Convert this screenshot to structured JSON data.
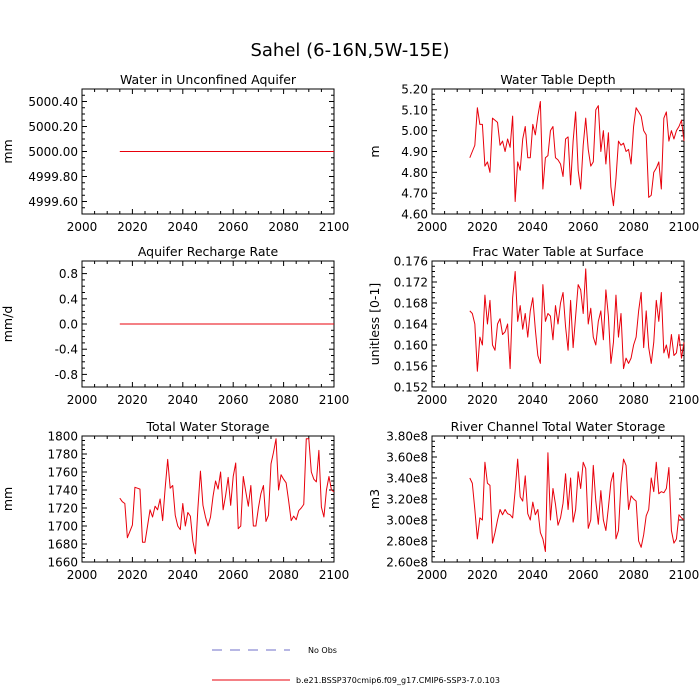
{
  "title": "Sahel (6-16N,5W-15E)",
  "legend": [
    {
      "label": "No Obs",
      "color": "#6f6fc8",
      "dash": true
    },
    {
      "label": "b.e21.BSSP370cmip6.f09_g17.CMIP6-SSP3-7.0.103",
      "color": "#e8000b",
      "dash": false
    }
  ],
  "chart_data": [
    {
      "type": "line",
      "title": "Water in Unconfined Aquifer",
      "xlabel": "",
      "ylabel": "mm",
      "xlim": [
        2000,
        2100
      ],
      "ylim": [
        4999.5,
        5000.5
      ],
      "xticks": [
        2000,
        2020,
        2040,
        2060,
        2080,
        2100
      ],
      "yticks": [
        4999.6,
        4999.8,
        5000.0,
        5000.2,
        5000.4
      ],
      "ytick_labels": [
        "4999.60",
        "4999.80",
        "5000.00",
        "5000.20",
        "5000.40"
      ],
      "series": [
        {
          "x": [
            2015,
            2100
          ],
          "y": [
            5000.0,
            5000.0
          ]
        }
      ]
    },
    {
      "type": "line",
      "title": "Water Table Depth",
      "xlabel": "",
      "ylabel": "m",
      "xlim": [
        2000,
        2100
      ],
      "ylim": [
        4.6,
        5.2
      ],
      "xticks": [
        2000,
        2020,
        2040,
        2060,
        2080,
        2100
      ],
      "yticks": [
        4.6,
        4.7,
        4.8,
        4.9,
        5.0,
        5.1,
        5.2
      ],
      "ytick_labels": [
        "4.60",
        "4.70",
        "4.80",
        "4.90",
        "5.00",
        "5.10",
        "5.20"
      ],
      "series": [
        {
          "x_start": 2015,
          "y": [
            4.87,
            4.9,
            4.93,
            5.11,
            5.03,
            5.03,
            4.83,
            4.85,
            4.8,
            5.06,
            5.05,
            5.04,
            4.93,
            4.95,
            4.9,
            4.96,
            4.92,
            5.07,
            4.66,
            4.85,
            4.81,
            4.96,
            5.02,
            4.87,
            4.87,
            5.03,
            4.98,
            5.07,
            5.14,
            4.72,
            4.87,
            4.88,
            5.0,
            5.02,
            4.87,
            4.86,
            4.84,
            4.78,
            4.96,
            4.97,
            4.74,
            4.95,
            5.09,
            4.81,
            4.72,
            4.93,
            5.06,
            4.91,
            4.83,
            4.85,
            5.1,
            5.12,
            4.9,
            5.0,
            4.84,
            4.99,
            4.73,
            4.64,
            4.77,
            4.95,
            4.93,
            4.94,
            4.9,
            4.91,
            4.84,
            5.02,
            5.11,
            5.09,
            5.07,
            5.0,
            4.98,
            4.68,
            4.69,
            4.8,
            4.82,
            4.85,
            4.72,
            5.06,
            5.09,
            4.95,
            5.0,
            4.96,
            5.0,
            5.02,
            5.05,
            4.95
          ]
        }
      ]
    },
    {
      "type": "line",
      "title": "Aquifer Recharge Rate",
      "xlabel": "",
      "ylabel": "mm/d",
      "xlim": [
        2000,
        2100
      ],
      "ylim": [
        -1.0,
        1.0
      ],
      "xticks": [
        2000,
        2020,
        2040,
        2060,
        2080,
        2100
      ],
      "yticks": [
        -0.8,
        -0.4,
        0.0,
        0.4,
        0.8
      ],
      "ytick_labels": [
        "-0.8",
        "-0.4",
        "0.0",
        "0.4",
        "0.8"
      ],
      "series": [
        {
          "x": [
            2015,
            2100
          ],
          "y": [
            0.0,
            0.0
          ]
        }
      ]
    },
    {
      "type": "line",
      "title": "Frac Water Table at Surface",
      "xlabel": "",
      "ylabel": "unitless [0-1]",
      "xlim": [
        2000,
        2100
      ],
      "ylim": [
        0.152,
        0.176
      ],
      "xticks": [
        2000,
        2020,
        2040,
        2060,
        2080,
        2100
      ],
      "yticks": [
        0.152,
        0.156,
        0.16,
        0.164,
        0.168,
        0.172,
        0.176
      ],
      "ytick_labels": [
        "0.152",
        "0.156",
        "0.160",
        "0.164",
        "0.168",
        "0.172",
        "0.176"
      ],
      "series": [
        {
          "x_start": 2015,
          "y": [
            0.1665,
            0.166,
            0.164,
            0.155,
            0.1615,
            0.16,
            0.1695,
            0.164,
            0.1685,
            0.16,
            0.159,
            0.164,
            0.165,
            0.162,
            0.1625,
            0.164,
            0.1555,
            0.169,
            0.174,
            0.1645,
            0.1675,
            0.163,
            0.166,
            0.1615,
            0.1665,
            0.169,
            0.163,
            0.158,
            0.1565,
            0.1715,
            0.1645,
            0.166,
            0.1655,
            0.161,
            0.1675,
            0.164,
            0.168,
            0.17,
            0.1635,
            0.159,
            0.1685,
            0.1595,
            0.1655,
            0.1715,
            0.1705,
            0.166,
            0.1745,
            0.164,
            0.167,
            0.1615,
            0.16,
            0.1645,
            0.1665,
            0.161,
            0.1705,
            0.1655,
            0.1565,
            0.1605,
            0.1695,
            0.1615,
            0.166,
            0.1555,
            0.1575,
            0.1565,
            0.1575,
            0.16,
            0.1615,
            0.1665,
            0.17,
            0.1595,
            0.1665,
            0.1595,
            0.1565,
            0.1605,
            0.1685,
            0.1645,
            0.17,
            0.1585,
            0.16,
            0.1575,
            0.162,
            0.158,
            0.1585,
            0.162,
            0.1575,
            0.1605
          ]
        }
      ]
    },
    {
      "type": "line",
      "title": "Total Water Storage",
      "xlabel": "",
      "ylabel": "mm",
      "xlim": [
        2000,
        2100
      ],
      "ylim": [
        1660,
        1800
      ],
      "xticks": [
        2000,
        2020,
        2040,
        2060,
        2080,
        2100
      ],
      "yticks": [
        1660,
        1680,
        1700,
        1720,
        1740,
        1760,
        1780,
        1800
      ],
      "ytick_labels": [
        "1660",
        "1680",
        "1700",
        "1720",
        "1740",
        "1760",
        "1780",
        "1800"
      ],
      "series": [
        {
          "x_start": 2015,
          "y": [
            1731,
            1727,
            1725,
            1687,
            1694,
            1701,
            1743,
            1742,
            1741,
            1682,
            1682,
            1700,
            1718,
            1710,
            1722,
            1718,
            1730,
            1706,
            1742,
            1774,
            1742,
            1745,
            1712,
            1700,
            1696,
            1725,
            1700,
            1715,
            1711,
            1683,
            1669,
            1720,
            1761,
            1723,
            1710,
            1700,
            1710,
            1733,
            1750,
            1741,
            1760,
            1718,
            1734,
            1754,
            1723,
            1755,
            1770,
            1697,
            1700,
            1755,
            1738,
            1722,
            1745,
            1700,
            1700,
            1720,
            1736,
            1745,
            1705,
            1712,
            1769,
            1782,
            1797,
            1740,
            1757,
            1752,
            1748,
            1728,
            1706,
            1711,
            1707,
            1717,
            1720,
            1724,
            1797,
            1797,
            1760,
            1752,
            1749,
            1784,
            1721,
            1710,
            1740,
            1755,
            1740,
            1738
          ]
        }
      ]
    },
    {
      "type": "line",
      "title": "River Channel Total Water Storage",
      "xlabel": "",
      "ylabel": "m3",
      "xlim": [
        2000,
        2100
      ],
      "ylim": [
        260000000,
        380000000
      ],
      "xticks": [
        2000,
        2020,
        2040,
        2060,
        2080,
        2100
      ],
      "yticks": [
        260000000,
        280000000,
        300000000,
        320000000,
        340000000,
        360000000,
        380000000
      ],
      "ytick_labels": [
        "2.60e8",
        "2.80e8",
        "3.00e8",
        "3.20e8",
        "3.40e8",
        "3.60e8",
        "3.80e8"
      ],
      "series": [
        {
          "x_start": 2015,
          "y": [
            340000000,
            335000000,
            310000000,
            282000000,
            302000000,
            300000000,
            355000000,
            335000000,
            333000000,
            278000000,
            288000000,
            300000000,
            310000000,
            305000000,
            310000000,
            306000000,
            305000000,
            302000000,
            328000000,
            358000000,
            322000000,
            318000000,
            342000000,
            306000000,
            300000000,
            317000000,
            305000000,
            310000000,
            288000000,
            282000000,
            270000000,
            364000000,
            300000000,
            330000000,
            315000000,
            295000000,
            302000000,
            316000000,
            344000000,
            310000000,
            340000000,
            298000000,
            310000000,
            346000000,
            330000000,
            355000000,
            349000000,
            292000000,
            300000000,
            352000000,
            318000000,
            296000000,
            328000000,
            300000000,
            290000000,
            312000000,
            336000000,
            345000000,
            282000000,
            290000000,
            335000000,
            358000000,
            352000000,
            310000000,
            323000000,
            320000000,
            318000000,
            280000000,
            274000000,
            286000000,
            304000000,
            310000000,
            340000000,
            327000000,
            355000000,
            325000000,
            327000000,
            326000000,
            330000000,
            350000000,
            290000000,
            278000000,
            282000000,
            305000000,
            302000000,
            300000000
          ]
        }
      ]
    }
  ]
}
